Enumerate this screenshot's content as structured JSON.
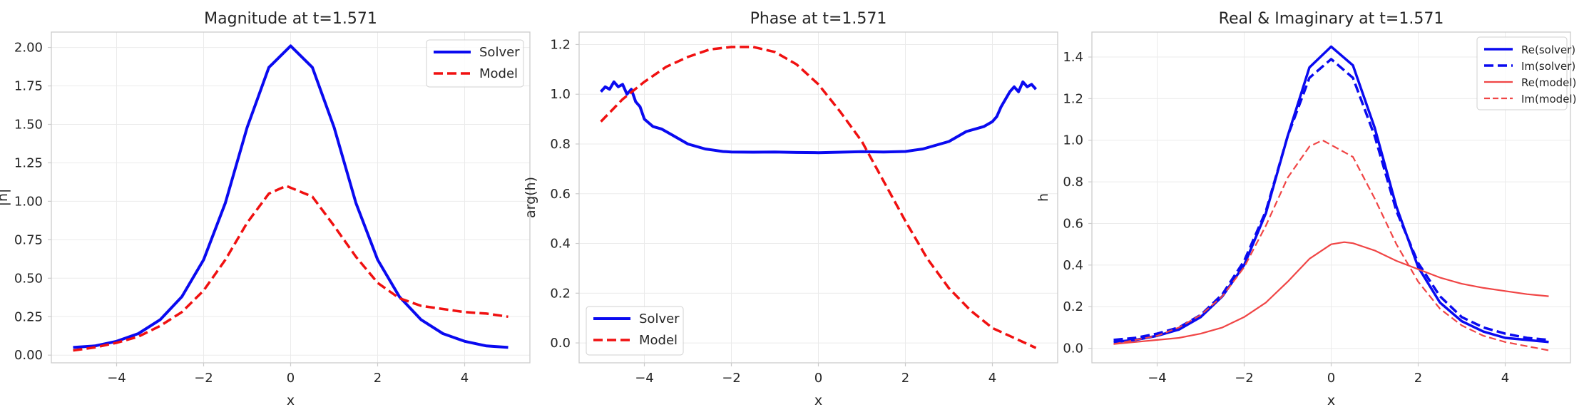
{
  "colors": {
    "solver": "#0a0af0",
    "model": "#f01010",
    "model_light": "#f04545"
  },
  "chart_data": [
    {
      "type": "line",
      "title": "Magnitude at t=1.571",
      "xlabel": "x",
      "ylabel": "|h|",
      "xlim": [
        -5.5,
        5.5
      ],
      "ylim": [
        -0.05,
        2.1
      ],
      "xticks": [
        -4,
        -2,
        0,
        2,
        4
      ],
      "xtick_labels": [
        "−4",
        "−2",
        "0",
        "2",
        "4"
      ],
      "yticks": [
        0.0,
        0.25,
        0.5,
        0.75,
        1.0,
        1.25,
        1.5,
        1.75,
        2.0
      ],
      "ytick_labels": [
        "0.00",
        "0.25",
        "0.50",
        "0.75",
        "1.00",
        "1.25",
        "1.50",
        "1.75",
        "2.00"
      ],
      "grid": true,
      "legend": "upper-right",
      "series": [
        {
          "name": "Solver",
          "style": "solid",
          "color": "#0a0af0",
          "width": 4,
          "x": [
            -5,
            -4.5,
            -4,
            -3.5,
            -3,
            -2.5,
            -2,
            -1.5,
            -1,
            -0.5,
            0,
            0.5,
            1,
            1.5,
            2,
            2.5,
            3,
            3.5,
            4,
            4.5,
            5
          ],
          "y": [
            0.05,
            0.06,
            0.09,
            0.14,
            0.23,
            0.38,
            0.62,
            0.99,
            1.48,
            1.87,
            2.01,
            1.87,
            1.48,
            0.99,
            0.62,
            0.38,
            0.23,
            0.14,
            0.09,
            0.06,
            0.05
          ]
        },
        {
          "name": "Model",
          "style": "dashed",
          "color": "#f01010",
          "width": 3.5,
          "x": [
            -5,
            -4.5,
            -4,
            -3.5,
            -3,
            -2.5,
            -2,
            -1.5,
            -1,
            -0.5,
            -0.1,
            0.5,
            1,
            1.5,
            2,
            2.5,
            3,
            3.5,
            4,
            4.5,
            5
          ],
          "y": [
            0.03,
            0.05,
            0.08,
            0.12,
            0.19,
            0.28,
            0.42,
            0.62,
            0.86,
            1.05,
            1.1,
            1.03,
            0.84,
            0.64,
            0.47,
            0.37,
            0.32,
            0.3,
            0.28,
            0.27,
            0.25
          ]
        }
      ]
    },
    {
      "type": "line",
      "title": "Phase at t=1.571",
      "xlabel": "x",
      "ylabel": "arg(h)",
      "xlim": [
        -5.5,
        5.5
      ],
      "ylim": [
        -0.08,
        1.25
      ],
      "xticks": [
        -4,
        -2,
        0,
        2,
        4
      ],
      "xtick_labels": [
        "−4",
        "−2",
        "0",
        "2",
        "4"
      ],
      "yticks": [
        0.0,
        0.2,
        0.4,
        0.6,
        0.8,
        1.0,
        1.2
      ],
      "ytick_labels": [
        "0.0",
        "0.2",
        "0.4",
        "0.6",
        "0.8",
        "1.0",
        "1.2"
      ],
      "grid": true,
      "legend": "lower-left",
      "series": [
        {
          "name": "Solver",
          "style": "solid",
          "color": "#0a0af0",
          "width": 4,
          "x": [
            -5,
            -4.9,
            -4.8,
            -4.7,
            -4.6,
            -4.5,
            -4.4,
            -4.3,
            -4.2,
            -4.1,
            -4,
            -3.8,
            -3.6,
            -3.4,
            -3.2,
            -3,
            -2.8,
            -2.6,
            -2.4,
            -2.2,
            -2,
            -1.5,
            -1,
            -0.5,
            0,
            0.5,
            1,
            1.5,
            2,
            2.2,
            2.4,
            2.6,
            2.8,
            3,
            3.2,
            3.4,
            3.6,
            3.8,
            4,
            4.1,
            4.2,
            4.3,
            4.4,
            4.5,
            4.6,
            4.7,
            4.8,
            4.9,
            5
          ],
          "y": [
            1.01,
            1.03,
            1.02,
            1.05,
            1.03,
            1.04,
            1.0,
            1.02,
            0.97,
            0.95,
            0.9,
            0.87,
            0.86,
            0.84,
            0.82,
            0.8,
            0.79,
            0.78,
            0.775,
            0.77,
            0.768,
            0.767,
            0.768,
            0.766,
            0.765,
            0.767,
            0.769,
            0.768,
            0.77,
            0.775,
            0.78,
            0.79,
            0.8,
            0.81,
            0.83,
            0.85,
            0.86,
            0.87,
            0.89,
            0.91,
            0.95,
            0.98,
            1.01,
            1.03,
            1.01,
            1.05,
            1.03,
            1.04,
            1.02
          ]
        },
        {
          "name": "Model",
          "style": "dashed",
          "color": "#f01010",
          "width": 3.5,
          "x": [
            -5,
            -4.5,
            -4,
            -3.5,
            -3,
            -2.5,
            -2,
            -1.5,
            -1,
            -0.5,
            0,
            0.5,
            1,
            1.5,
            2,
            2.5,
            3,
            3.5,
            4,
            4.5,
            5
          ],
          "y": [
            0.89,
            0.98,
            1.05,
            1.11,
            1.15,
            1.18,
            1.19,
            1.19,
            1.17,
            1.12,
            1.04,
            0.93,
            0.81,
            0.65,
            0.49,
            0.34,
            0.22,
            0.13,
            0.06,
            0.02,
            -0.02
          ]
        }
      ]
    },
    {
      "type": "line",
      "title": "Real & Imaginary at t=1.571",
      "xlabel": "x",
      "ylabel": "h",
      "xlim": [
        -5.5,
        5.5
      ],
      "ylim": [
        -0.07,
        1.52
      ],
      "xticks": [
        -4,
        -2,
        0,
        2,
        4
      ],
      "xtick_labels": [
        "−4",
        "−2",
        "0",
        "2",
        "4"
      ],
      "yticks": [
        0.0,
        0.2,
        0.4,
        0.6,
        0.8,
        1.0,
        1.2,
        1.4
      ],
      "ytick_labels": [
        "0.0",
        "0.2",
        "0.4",
        "0.6",
        "0.8",
        "1.0",
        "1.2",
        "1.4"
      ],
      "grid": true,
      "legend": "upper-right",
      "series": [
        {
          "name": "Re(solver)",
          "style": "solid",
          "color": "#0a0af0",
          "width": 3.5,
          "x": [
            -5,
            -4.5,
            -4,
            -3.5,
            -3,
            -2.5,
            -2,
            -1.5,
            -1,
            -0.5,
            0,
            0.5,
            1,
            1.5,
            2,
            2.5,
            3,
            3.5,
            4,
            4.5,
            5
          ],
          "y": [
            0.03,
            0.04,
            0.06,
            0.09,
            0.15,
            0.25,
            0.4,
            0.65,
            1.02,
            1.35,
            1.45,
            1.36,
            1.06,
            0.68,
            0.39,
            0.22,
            0.13,
            0.08,
            0.05,
            0.04,
            0.03
          ]
        },
        {
          "name": "Im(solver)",
          "style": "dashed",
          "color": "#0a0af0",
          "width": 3.5,
          "x": [
            -5,
            -4.5,
            -4,
            -3.5,
            -3,
            -2.5,
            -2,
            -1.5,
            -1,
            -0.5,
            0,
            0.5,
            1,
            1.5,
            2,
            2.5,
            3,
            3.5,
            4,
            4.5,
            5
          ],
          "y": [
            0.04,
            0.05,
            0.07,
            0.1,
            0.16,
            0.26,
            0.42,
            0.66,
            1.02,
            1.3,
            1.39,
            1.3,
            1.02,
            0.66,
            0.41,
            0.25,
            0.15,
            0.1,
            0.07,
            0.05,
            0.04
          ]
        },
        {
          "name": "Re(model)",
          "style": "solid",
          "color": "#f04545",
          "width": 2.2,
          "x": [
            -5,
            -4.5,
            -4,
            -3.5,
            -3,
            -2.5,
            -2,
            -1.5,
            -1,
            -0.5,
            0,
            0.3,
            0.5,
            1,
            1.5,
            2,
            2.5,
            3,
            3.5,
            4,
            4.5,
            5
          ],
          "y": [
            0.02,
            0.03,
            0.04,
            0.05,
            0.07,
            0.1,
            0.15,
            0.22,
            0.32,
            0.43,
            0.5,
            0.51,
            0.505,
            0.47,
            0.42,
            0.38,
            0.34,
            0.31,
            0.29,
            0.275,
            0.26,
            0.25
          ]
        },
        {
          "name": "Im(model)",
          "style": "dashed",
          "color": "#f04545",
          "width": 2.2,
          "x": [
            -5,
            -4.5,
            -4,
            -3.5,
            -3,
            -2.5,
            -2,
            -1.5,
            -1,
            -0.5,
            -0.2,
            0.5,
            1,
            1.5,
            2,
            2.5,
            3,
            3.5,
            4,
            4.5,
            5
          ],
          "y": [
            0.02,
            0.04,
            0.06,
            0.1,
            0.16,
            0.25,
            0.39,
            0.59,
            0.82,
            0.97,
            1.0,
            0.92,
            0.72,
            0.5,
            0.32,
            0.19,
            0.11,
            0.06,
            0.03,
            0.01,
            -0.01
          ]
        }
      ]
    }
  ]
}
